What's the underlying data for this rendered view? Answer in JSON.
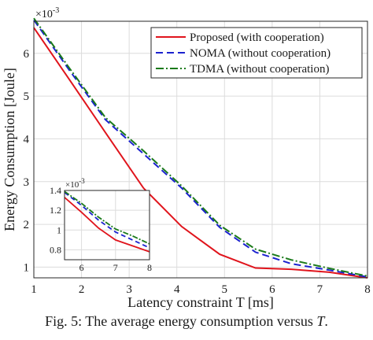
{
  "caption": {
    "text": "Fig. 5: The average energy consumption versus ",
    "variable": "T",
    "suffix": "."
  },
  "chart_data": {
    "type": "line",
    "xlabel": "Latency constraint T [ms]",
    "ylabel": "Energy Consumption [Joule]",
    "y_multiplier": "×10-3",
    "xlim": [
      1,
      8
    ],
    "ylim": [
      0.75,
      6.75
    ],
    "xticks": [
      1,
      2,
      3,
      4,
      5,
      6,
      7,
      8
    ],
    "yticks": [
      1,
      2,
      3,
      4,
      5,
      6
    ],
    "grid": true,
    "legend_position": "top-right",
    "x": [
      1,
      1.75,
      2.5,
      3.3,
      4.1,
      4.9,
      5.65,
      6.4,
      7.2,
      8
    ],
    "series": [
      {
        "name": "Proposed (with cooperation)",
        "color": "#e0141c",
        "style": "solid",
        "values": [
          6.6,
          5.38,
          4.15,
          2.85,
          1.95,
          1.3,
          0.98,
          0.95,
          0.88,
          0.75
        ]
      },
      {
        "name": "NOMA (without cooperation)",
        "color": "#1b22cf",
        "style": "dashed",
        "values": [
          6.78,
          5.6,
          4.45,
          3.65,
          2.85,
          1.93,
          1.35,
          1.08,
          0.93,
          0.77
        ]
      },
      {
        "name": "TDMA (without cooperation)",
        "color": "#1a7a1a",
        "style": "dashdot",
        "values": [
          6.82,
          5.65,
          4.5,
          3.72,
          2.9,
          1.98,
          1.42,
          1.17,
          0.97,
          0.79
        ]
      }
    ],
    "inset": {
      "xlim": [
        5.5,
        8
      ],
      "ylim": [
        0.7,
        1.4
      ],
      "xticks": [
        6,
        7,
        8
      ],
      "yticks": [
        0.8,
        1,
        1.2,
        1.4
      ],
      "y_multiplier": "×10-3",
      "grid": true,
      "x": [
        5.5,
        6,
        6.5,
        7,
        7.5,
        8
      ],
      "series": [
        {
          "name": "Proposed (with cooperation)",
          "values": [
            1.33,
            1.18,
            1.02,
            0.9,
            0.84,
            0.78
          ]
        },
        {
          "name": "NOMA (without cooperation)",
          "values": [
            1.38,
            1.25,
            1.1,
            0.98,
            0.9,
            0.82
          ]
        },
        {
          "name": "TDMA (without cooperation)",
          "values": [
            1.39,
            1.27,
            1.13,
            1.01,
            0.94,
            0.86
          ]
        }
      ]
    }
  }
}
